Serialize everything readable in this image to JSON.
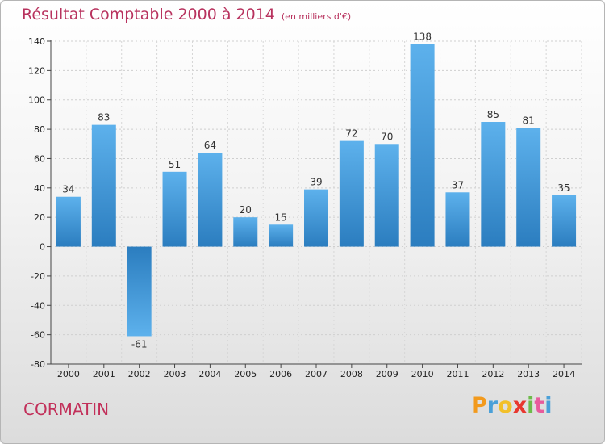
{
  "header": {
    "title": "Résultat Comptable 2000 à 2014",
    "unit": "(en milliers d'€)"
  },
  "footer": {
    "city": "CORMATIN",
    "logo_letters": [
      "P",
      "r",
      "o",
      "x",
      "i",
      "t",
      "i"
    ],
    "logo_colors": [
      "#f29a1d",
      "#4aa0d8",
      "#f2c02a",
      "#e8372f",
      "#6dbb4a",
      "#e85b9c",
      "#4aa0d8"
    ]
  },
  "colors": {
    "bar_light": "#5db1ec",
    "bar_dark": "#2b7dbf",
    "title": "#b8325e"
  },
  "chart_data": {
    "type": "bar",
    "categories": [
      "2000",
      "2001",
      "2002",
      "2003",
      "2004",
      "2005",
      "2006",
      "2007",
      "2008",
      "2009",
      "2010",
      "2011",
      "2012",
      "2013",
      "2014"
    ],
    "values": [
      34,
      83,
      -61,
      51,
      64,
      20,
      15,
      39,
      72,
      70,
      138,
      37,
      85,
      81,
      35
    ],
    "value_labels": [
      "34",
      "83",
      "-61",
      "51",
      "64",
      "20",
      "15",
      "39",
      "72",
      "70",
      "138",
      "37",
      "85",
      "81",
      "35"
    ],
    "title": "Résultat Comptable 2000 à 2014",
    "xlabel": "",
    "ylabel": "",
    "ylim": [
      -80,
      140
    ],
    "yticks": [
      -80,
      -60,
      -40,
      -20,
      0,
      20,
      40,
      60,
      80,
      100,
      120,
      140
    ],
    "ytick_labels": [
      "-80",
      "-60",
      "-40",
      "-20",
      "0",
      "20",
      "40",
      "60",
      "80",
      "100",
      "120",
      "140"
    ],
    "grid": true
  }
}
